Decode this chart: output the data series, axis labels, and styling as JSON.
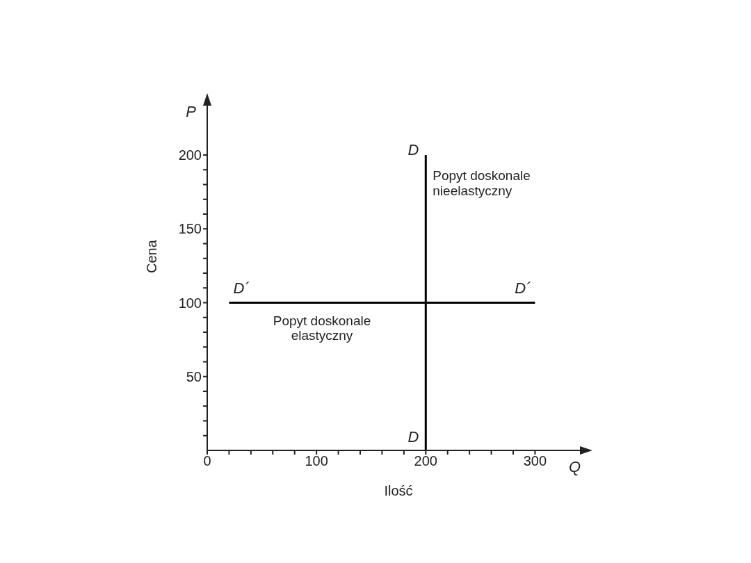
{
  "chart_data": {
    "type": "line",
    "xlabel": "Ilość",
    "ylabel": "Cena",
    "xlim": [
      0,
      350
    ],
    "ylim": [
      0,
      240
    ],
    "xticks": [
      0,
      {
        "value": 20,
        "label": null
      },
      {
        "value": 40,
        "label": null
      },
      {
        "value": 60,
        "label": null
      },
      {
        "value": 80,
        "label": null
      },
      100,
      {
        "value": 120,
        "label": null
      },
      {
        "value": 140,
        "label": null
      },
      {
        "value": 160,
        "label": null
      },
      {
        "value": 180,
        "label": null
      },
      200,
      {
        "value": 220,
        "label": null
      },
      {
        "value": 240,
        "label": null
      },
      {
        "value": 260,
        "label": null
      },
      {
        "value": 280,
        "label": null
      },
      300
    ],
    "yticks": [
      {
        "value": 10,
        "label": null
      },
      {
        "value": 20,
        "label": null
      },
      {
        "value": 30,
        "label": null
      },
      {
        "value": 40,
        "label": null
      },
      50,
      {
        "value": 60,
        "label": null
      },
      {
        "value": 70,
        "label": null
      },
      {
        "value": 80,
        "label": null
      },
      {
        "value": 90,
        "label": null
      },
      100,
      {
        "value": 110,
        "label": null
      },
      {
        "value": 120,
        "label": null
      },
      {
        "value": 130,
        "label": null
      },
      {
        "value": 140,
        "label": null
      },
      150,
      {
        "value": 160,
        "label": null
      },
      {
        "value": 170,
        "label": null
      },
      {
        "value": 180,
        "label": null
      },
      {
        "value": 190,
        "label": null
      },
      200
    ],
    "series": [
      {
        "color": "#000000",
        "x": [
          20,
          300
        ],
        "values": [
          100,
          100
        ]
      },
      {
        "color": "#000000",
        "x": [
          200,
          200
        ],
        "values": [
          0,
          200
        ]
      }
    ],
    "annotations": [
      "P",
      "Q",
      {
        "text": "D",
        "x": 200,
        "y": 200
      },
      {
        "text": "D",
        "x": 200,
        "y": 0
      },
      {
        "text": "D´",
        "x": 20,
        "y": 100
      },
      {
        "text": "D´",
        "x": 300,
        "y": 100
      },
      {
        "text": "Popyt doskonale\nnieelastyczny",
        "x": 200,
        "y": 185
      },
      {
        "text": "Popyt doskonale\nelastyczny",
        "x": 105,
        "y": 100
      }
    ]
  }
}
